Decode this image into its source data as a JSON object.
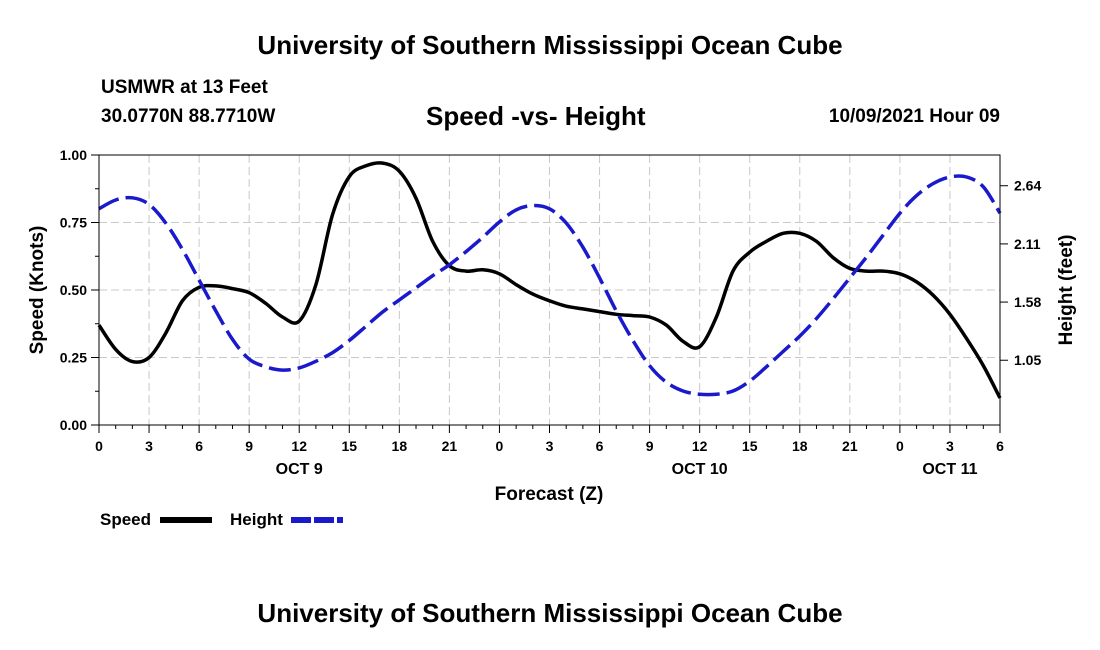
{
  "header": {
    "title": "University of Southern Mississippi Ocean Cube",
    "station": "USMWR at 13 Feet",
    "coords": "30.0770N  88.7710W",
    "subtitle": "Speed -vs- Height",
    "datetime": "10/09/2021 Hour 09"
  },
  "footer": {
    "title": "University of Southern Mississippi Ocean Cube"
  },
  "chart_data": {
    "type": "line",
    "title": "Speed -vs- Height",
    "xlabel": "Forecast (Z)",
    "ylabel_left": "Speed (Knots)",
    "ylabel_right": "Height (feet)",
    "x_range_hours": [
      0,
      54
    ],
    "x_ticks": [
      {
        "h": 0,
        "label": "0"
      },
      {
        "h": 3,
        "label": "3"
      },
      {
        "h": 6,
        "label": "6"
      },
      {
        "h": 9,
        "label": "9"
      },
      {
        "h": 12,
        "label": "12"
      },
      {
        "h": 15,
        "label": "15"
      },
      {
        "h": 18,
        "label": "18"
      },
      {
        "h": 21,
        "label": "21"
      },
      {
        "h": 24,
        "label": "0"
      },
      {
        "h": 27,
        "label": "3"
      },
      {
        "h": 30,
        "label": "6"
      },
      {
        "h": 33,
        "label": "9"
      },
      {
        "h": 36,
        "label": "12"
      },
      {
        "h": 39,
        "label": "15"
      },
      {
        "h": 42,
        "label": "18"
      },
      {
        "h": 45,
        "label": "21"
      },
      {
        "h": 48,
        "label": "0"
      },
      {
        "h": 51,
        "label": "3"
      },
      {
        "h": 54,
        "label": "6"
      }
    ],
    "date_labels": [
      {
        "h": 12,
        "label": "OCT 9"
      },
      {
        "h": 36,
        "label": "OCT 10"
      },
      {
        "h": 51,
        "label": "OCT 11"
      }
    ],
    "y_left": {
      "range": [
        0,
        1
      ],
      "ticks": [
        {
          "v": 0,
          "label": "0.00"
        },
        {
          "v": 0.25,
          "label": "0.25"
        },
        {
          "v": 0.5,
          "label": "0.50"
        },
        {
          "v": 0.75,
          "label": "0.75"
        },
        {
          "v": 1,
          "label": "1.00"
        }
      ]
    },
    "y_right": {
      "range": [
        0.46,
        2.92
      ],
      "ticks": [
        {
          "v": 1.05,
          "label": "1.05"
        },
        {
          "v": 1.58,
          "label": "1.58"
        },
        {
          "v": 2.11,
          "label": "2.11"
        },
        {
          "v": 2.64,
          "label": "2.64"
        }
      ]
    },
    "grid": true,
    "legend": [
      {
        "name": "Speed",
        "color": "#000000",
        "style": "solid"
      },
      {
        "name": "Height",
        "color": "#1a1acc",
        "style": "dashed"
      }
    ],
    "series": [
      {
        "name": "Speed",
        "axis": "left",
        "color": "#000000",
        "style": "solid",
        "points": [
          [
            0,
            0.37
          ],
          [
            1,
            0.28
          ],
          [
            2,
            0.235
          ],
          [
            3,
            0.25
          ],
          [
            4,
            0.34
          ],
          [
            5,
            0.46
          ],
          [
            6,
            0.51
          ],
          [
            7,
            0.515
          ],
          [
            8,
            0.505
          ],
          [
            9,
            0.49
          ],
          [
            10,
            0.45
          ],
          [
            11,
            0.4
          ],
          [
            12,
            0.385
          ],
          [
            13,
            0.52
          ],
          [
            14,
            0.78
          ],
          [
            15,
            0.92
          ],
          [
            16,
            0.96
          ],
          [
            17,
            0.97
          ],
          [
            18,
            0.94
          ],
          [
            19,
            0.84
          ],
          [
            20,
            0.68
          ],
          [
            21,
            0.59
          ],
          [
            22,
            0.57
          ],
          [
            23,
            0.575
          ],
          [
            24,
            0.56
          ],
          [
            25,
            0.52
          ],
          [
            26,
            0.485
          ],
          [
            27,
            0.46
          ],
          [
            28,
            0.44
          ],
          [
            29,
            0.43
          ],
          [
            30,
            0.42
          ],
          [
            31,
            0.41
          ],
          [
            32,
            0.405
          ],
          [
            33,
            0.4
          ],
          [
            34,
            0.37
          ],
          [
            35,
            0.31
          ],
          [
            36,
            0.29
          ],
          [
            37,
            0.4
          ],
          [
            38,
            0.57
          ],
          [
            39,
            0.64
          ],
          [
            40,
            0.68
          ],
          [
            41,
            0.71
          ],
          [
            42,
            0.71
          ],
          [
            43,
            0.68
          ],
          [
            44,
            0.62
          ],
          [
            45,
            0.58
          ],
          [
            46,
            0.57
          ],
          [
            47,
            0.57
          ],
          [
            48,
            0.56
          ],
          [
            49,
            0.53
          ],
          [
            50,
            0.48
          ],
          [
            51,
            0.41
          ],
          [
            52,
            0.32
          ],
          [
            53,
            0.22
          ],
          [
            54,
            0.1
          ]
        ]
      },
      {
        "name": "Height",
        "axis": "right",
        "color": "#1a1acc",
        "style": "dashed",
        "points": [
          [
            0,
            2.43
          ],
          [
            1,
            2.51
          ],
          [
            2,
            2.53
          ],
          [
            3,
            2.47
          ],
          [
            4,
            2.3
          ],
          [
            5,
            2.06
          ],
          [
            6,
            1.78
          ],
          [
            7,
            1.5
          ],
          [
            8,
            1.24
          ],
          [
            9,
            1.06
          ],
          [
            10,
            0.99
          ],
          [
            11,
            0.96
          ],
          [
            12,
            0.98
          ],
          [
            13,
            1.04
          ],
          [
            14,
            1.12
          ],
          [
            15,
            1.23
          ],
          [
            16,
            1.36
          ],
          [
            17,
            1.49
          ],
          [
            18,
            1.6
          ],
          [
            19,
            1.71
          ],
          [
            20,
            1.82
          ],
          [
            21,
            1.92
          ],
          [
            22,
            2.04
          ],
          [
            23,
            2.17
          ],
          [
            24,
            2.31
          ],
          [
            25,
            2.42
          ],
          [
            26,
            2.46
          ],
          [
            27,
            2.43
          ],
          [
            28,
            2.3
          ],
          [
            29,
            2.08
          ],
          [
            30,
            1.8
          ],
          [
            31,
            1.5
          ],
          [
            32,
            1.23
          ],
          [
            33,
            1.0
          ],
          [
            34,
            0.85
          ],
          [
            35,
            0.77
          ],
          [
            36,
            0.74
          ],
          [
            37,
            0.74
          ],
          [
            38,
            0.77
          ],
          [
            39,
            0.86
          ],
          [
            40,
            0.99
          ],
          [
            41,
            1.13
          ],
          [
            42,
            1.27
          ],
          [
            43,
            1.43
          ],
          [
            44,
            1.61
          ],
          [
            45,
            1.8
          ],
          [
            46,
            1.99
          ],
          [
            47,
            2.19
          ],
          [
            48,
            2.39
          ],
          [
            49,
            2.55
          ],
          [
            50,
            2.66
          ],
          [
            51,
            2.72
          ],
          [
            52,
            2.72
          ],
          [
            53,
            2.63
          ],
          [
            54,
            2.39
          ]
        ]
      }
    ]
  }
}
